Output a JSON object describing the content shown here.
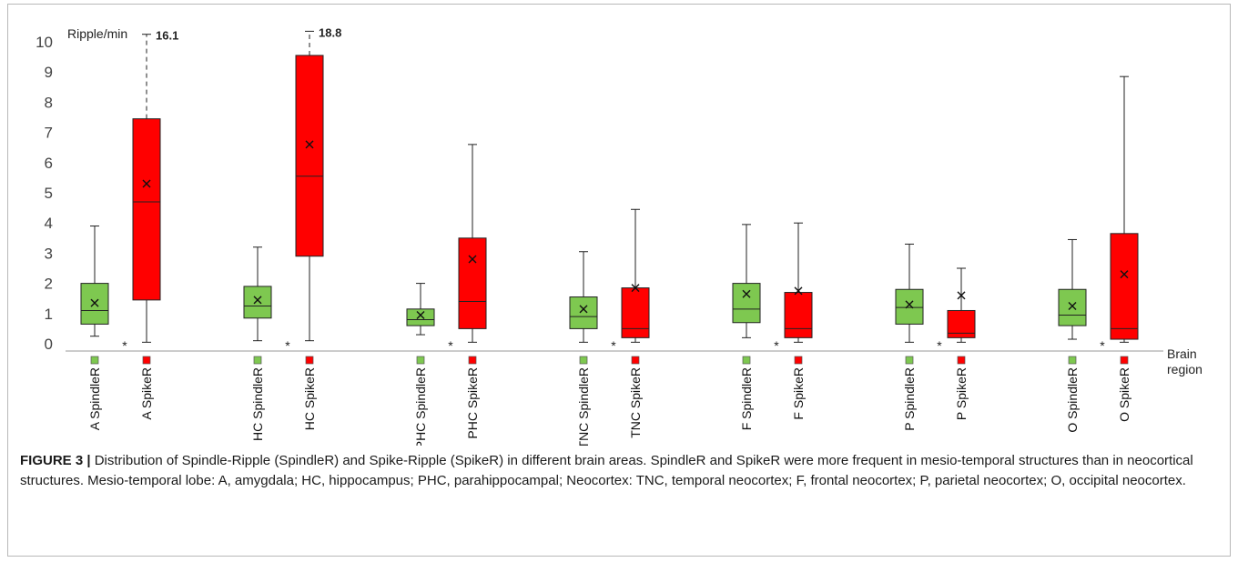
{
  "chart_data": {
    "type": "box",
    "ylabel": "Ripple/min",
    "xlabel": "Brain region",
    "ylim": [
      0,
      10.3
    ],
    "yticks": [
      0,
      1,
      2,
      3,
      4,
      5,
      6,
      7,
      8,
      9,
      10
    ],
    "grid": false,
    "colors": {
      "SpindleR": "#7ec850",
      "SpikeR": "#ff0000"
    },
    "categories": [
      "A SpindleR",
      "A SpikeR",
      "HC SpindleR",
      "HC SpikeR",
      "PHC SpindleR",
      "PHC SpikeR",
      "TNC SpindleR",
      "TNC SpikeR",
      "F SpindleR",
      "F SpikeR",
      "P SpindleR",
      "P SpikeR",
      "O SpindleR",
      "O SpikeR"
    ],
    "boxes": [
      {
        "label": "A SpindleR",
        "series": "SpindleR",
        "min": 0.25,
        "q1": 0.65,
        "median": 1.1,
        "q3": 2.0,
        "max": 3.9,
        "mean": 1.35
      },
      {
        "label": "A SpikeR",
        "series": "SpikeR",
        "min": 0.05,
        "q1": 1.45,
        "median": 4.7,
        "q3": 7.45,
        "max": 10.25,
        "mean": 5.3,
        "max_label": "16.1",
        "whisker_broken": true
      },
      {
        "label": "HC SpindleR",
        "series": "SpindleR",
        "min": 0.1,
        "q1": 0.85,
        "median": 1.25,
        "q3": 1.9,
        "max": 3.2,
        "mean": 1.45
      },
      {
        "label": "HC SpikeR",
        "series": "SpikeR",
        "min": 0.1,
        "q1": 2.9,
        "median": 5.55,
        "q3": 9.55,
        "max": 10.35,
        "mean": 6.6,
        "max_label": "18.8",
        "whisker_broken": true
      },
      {
        "label": "PHC SpindleR",
        "series": "SpindleR",
        "min": 0.3,
        "q1": 0.6,
        "median": 0.8,
        "q3": 1.15,
        "max": 2.0,
        "mean": 0.95
      },
      {
        "label": "PHC SpikeR",
        "series": "SpikeR",
        "min": 0.05,
        "q1": 0.5,
        "median": 1.4,
        "q3": 3.5,
        "max": 6.6,
        "mean": 2.8
      },
      {
        "label": "TNC SpindleR",
        "series": "SpindleR",
        "min": 0.05,
        "q1": 0.5,
        "median": 0.9,
        "q3": 1.55,
        "max": 3.05,
        "mean": 1.15
      },
      {
        "label": "TNC SpikeR",
        "series": "SpikeR",
        "min": 0.05,
        "q1": 0.2,
        "median": 0.5,
        "q3": 1.85,
        "max": 4.45,
        "mean": 1.85
      },
      {
        "label": "F SpindleR",
        "series": "SpindleR",
        "min": 0.2,
        "q1": 0.7,
        "median": 1.15,
        "q3": 2.0,
        "max": 3.95,
        "mean": 1.65
      },
      {
        "label": "F SpikeR",
        "series": "SpikeR",
        "min": 0.05,
        "q1": 0.2,
        "median": 0.5,
        "q3": 1.7,
        "max": 4.0,
        "mean": 1.75
      },
      {
        "label": "P SpindleR",
        "series": "SpindleR",
        "min": 0.05,
        "q1": 0.65,
        "median": 1.2,
        "q3": 1.8,
        "max": 3.3,
        "mean": 1.3
      },
      {
        "label": "P SpikeR",
        "series": "SpikeR",
        "min": 0.05,
        "q1": 0.2,
        "median": 0.35,
        "q3": 1.1,
        "max": 2.5,
        "mean": 1.6
      },
      {
        "label": "O SpindleR",
        "series": "SpindleR",
        "min": 0.15,
        "q1": 0.6,
        "median": 0.95,
        "q3": 1.8,
        "max": 3.45,
        "mean": 1.25
      },
      {
        "label": "O SpikeR",
        "series": "SpikeR",
        "min": 0.05,
        "q1": 0.15,
        "median": 0.5,
        "q3": 3.65,
        "max": 8.85,
        "mean": 2.3
      }
    ],
    "significance_marks": [
      "*",
      "*",
      "*",
      "*",
      "*",
      "*",
      "*"
    ]
  },
  "caption": {
    "label": "FIGURE 3 |",
    "text": " Distribution of Spindle-Ripple (SpindleR) and Spike-Ripple (SpikeR) in different brain areas. SpindleR and SpikeR were more frequent in mesio-temporal structures than in neocortical structures. Mesio-temporal lobe: A, amygdala; HC, hippocampus; PHC, parahippocampal; Neocortex: TNC, temporal neocortex; F, frontal neocortex; P, parietal neocortex; O, occipital neocortex."
  }
}
